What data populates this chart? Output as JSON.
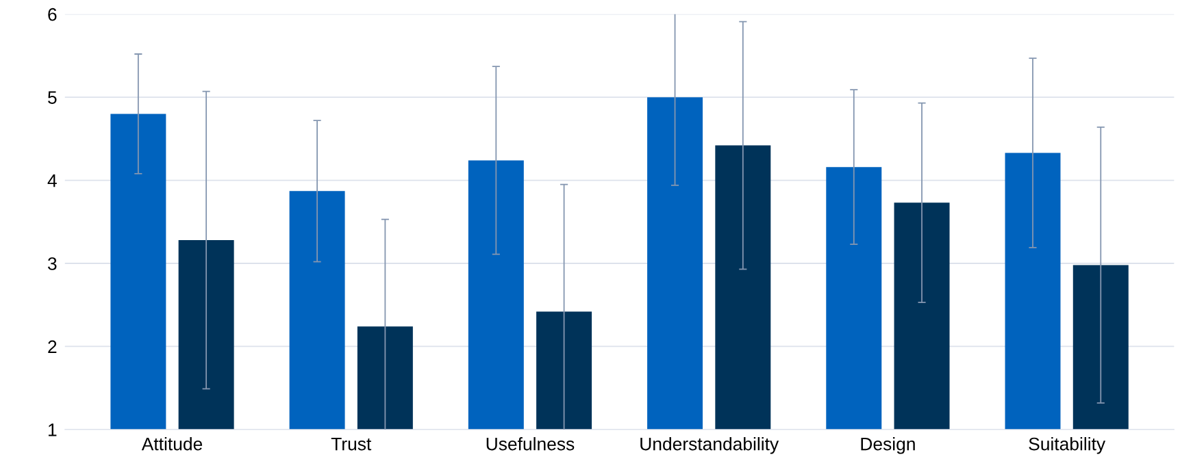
{
  "chart_data": {
    "type": "bar",
    "categories": [
      "Attitude",
      "Trust",
      "Usefulness",
      "Understandability",
      "Design",
      "Suitability"
    ],
    "series": [
      {
        "color": "#0063be",
        "values": [
          4.8,
          3.87,
          4.24,
          5.0,
          4.16,
          4.33
        ],
        "errors": [
          0.72,
          0.85,
          1.13,
          1.06,
          0.93,
          1.14
        ]
      },
      {
        "color": "#003359",
        "values": [
          3.28,
          2.24,
          2.42,
          4.42,
          3.73,
          2.98
        ],
        "errors": [
          1.79,
          1.29,
          1.53,
          1.49,
          1.2,
          1.66
        ]
      }
    ],
    "ylim": [
      1,
      6
    ],
    "yticks": [
      1,
      2,
      3,
      4,
      5,
      6
    ],
    "grid": "y",
    "legend": false
  }
}
